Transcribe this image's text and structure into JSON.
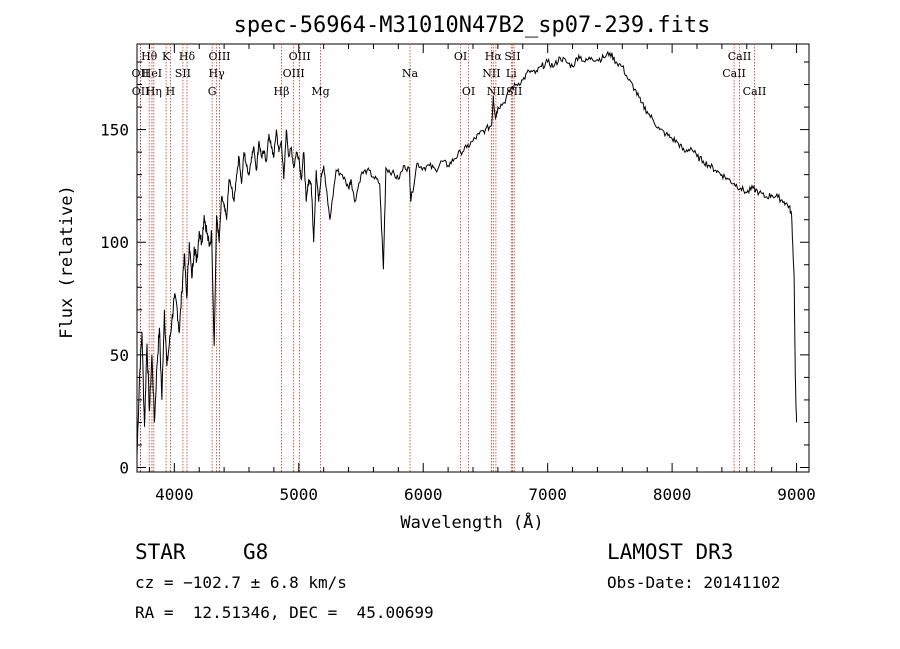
{
  "chart_data": {
    "type": "line",
    "title": "spec-56964-M31010N47B2_sp07-239.fits",
    "xlabel": "Wavelength (Å)",
    "ylabel": "Flux (relative)",
    "xlim": [
      3700,
      9100
    ],
    "ylim": [
      -2,
      188
    ],
    "xticks": [
      4000,
      5000,
      6000,
      7000,
      8000,
      9000
    ],
    "yticks": [
      0,
      50,
      100,
      150
    ],
    "series": [
      {
        "name": "spectrum",
        "x": [
          3700,
          3720,
          3740,
          3760,
          3780,
          3800,
          3820,
          3840,
          3860,
          3880,
          3900,
          3920,
          3940,
          3960,
          3980,
          4000,
          4020,
          4040,
          4060,
          4080,
          4100,
          4120,
          4140,
          4160,
          4180,
          4200,
          4220,
          4240,
          4260,
          4280,
          4300,
          4320,
          4340,
          4360,
          4380,
          4400,
          4420,
          4440,
          4460,
          4480,
          4500,
          4520,
          4540,
          4560,
          4580,
          4600,
          4620,
          4640,
          4660,
          4680,
          4700,
          4720,
          4740,
          4760,
          4780,
          4800,
          4820,
          4840,
          4860,
          4880,
          4900,
          4920,
          4940,
          4960,
          4980,
          5000,
          5020,
          5040,
          5060,
          5080,
          5100,
          5120,
          5140,
          5160,
          5180,
          5200,
          5220,
          5250,
          5300,
          5350,
          5400,
          5420,
          5450,
          5500,
          5550,
          5600,
          5650,
          5680,
          5700,
          5750,
          5800,
          5850,
          5890,
          5900,
          5950,
          6000,
          6050,
          6100,
          6150,
          6200,
          6250,
          6300,
          6350,
          6400,
          6450,
          6500,
          6550,
          6563,
          6580,
          6600,
          6650,
          6700,
          6750,
          6800,
          6850,
          6900,
          6950,
          7000,
          7050,
          7100,
          7150,
          7200,
          7250,
          7300,
          7350,
          7400,
          7450,
          7500,
          7550,
          7600,
          7650,
          7700,
          7750,
          7800,
          7850,
          7900,
          7950,
          8000,
          8050,
          8100,
          8150,
          8200,
          8250,
          8300,
          8350,
          8400,
          8450,
          8500,
          8550,
          8600,
          8650,
          8700,
          8750,
          8800,
          8850,
          8900,
          8940,
          8960,
          8980,
          8990,
          9000
        ],
        "y": [
          5,
          40,
          60,
          18,
          55,
          25,
          50,
          20,
          45,
          62,
          30,
          70,
          45,
          55,
          65,
          75,
          72,
          60,
          78,
          95,
          75,
          100,
          84,
          98,
          92,
          105,
          100,
          112,
          105,
          98,
          104,
          54,
          112,
          100,
          120,
          116,
          110,
          128,
          124,
          118,
          130,
          138,
          126,
          140,
          134,
          130,
          138,
          142,
          132,
          145,
          138,
          140,
          136,
          148,
          142,
          138,
          150,
          140,
          145,
          128,
          150,
          138,
          142,
          133,
          140,
          138,
          128,
          140,
          118,
          128,
          126,
          100,
          132,
          118,
          130,
          134,
          124,
          110,
          132,
          130,
          124,
          128,
          118,
          130,
          132,
          129,
          126,
          88,
          133,
          131,
          128,
          134,
          132,
          118,
          135,
          133,
          134,
          132,
          136,
          134,
          137,
          140,
          142,
          145,
          148,
          150,
          152,
          165,
          155,
          160,
          162,
          168,
          170,
          172,
          176,
          175,
          178,
          180,
          178,
          182,
          180,
          178,
          183,
          180,
          182,
          181,
          182,
          184,
          180,
          178,
          172,
          168,
          162,
          158,
          154,
          150,
          148,
          146,
          144,
          140,
          142,
          138,
          136,
          134,
          132,
          130,
          128,
          126,
          124,
          122,
          124,
          122,
          120,
          121,
          120,
          118,
          116,
          112,
          85,
          40,
          20
        ]
      }
    ],
    "spectral_lines": [
      {
        "label": "Hθ",
        "wavelength": 3798,
        "row": 1
      },
      {
        "label": "OII",
        "wavelength": 3727,
        "row": 2
      },
      {
        "label": "OII",
        "wavelength": 3729,
        "row": 3
      },
      {
        "label": "HeI",
        "wavelength": 3820,
        "row": 2
      },
      {
        "label": "Hη",
        "wavelength": 3835,
        "row": 3
      },
      {
        "label": "K",
        "wavelength": 3934,
        "row": 1
      },
      {
        "label": "H",
        "wavelength": 3969,
        "row": 3
      },
      {
        "label": "SII",
        "wavelength": 4069,
        "row": 2
      },
      {
        "label": "Hδ",
        "wavelength": 4102,
        "row": 1
      },
      {
        "label": "G",
        "wavelength": 4304,
        "row": 3
      },
      {
        "label": "OIII",
        "wavelength": 4363,
        "row": 1
      },
      {
        "label": "Hγ",
        "wavelength": 4340,
        "row": 2
      },
      {
        "label": "Hβ",
        "wavelength": 4861,
        "row": 3
      },
      {
        "label": "OIII",
        "wavelength": 4959,
        "row": 2
      },
      {
        "label": "OIII",
        "wavelength": 5007,
        "row": 1
      },
      {
        "label": "Mg",
        "wavelength": 5175,
        "row": 3
      },
      {
        "label": "Na",
        "wavelength": 5894,
        "row": 2
      },
      {
        "label": "OI",
        "wavelength": 6300,
        "row": 1
      },
      {
        "label": "OI",
        "wavelength": 6364,
        "row": 3
      },
      {
        "label": "Hα",
        "wavelength": 6563,
        "row": 1
      },
      {
        "label": "NII",
        "wavelength": 6548,
        "row": 2
      },
      {
        "label": "NII",
        "wavelength": 6584,
        "row": 3
      },
      {
        "label": "SII",
        "wavelength": 6717,
        "row": 1
      },
      {
        "label": "Li",
        "wavelength": 6708,
        "row": 2
      },
      {
        "label": "SII",
        "wavelength": 6731,
        "row": 3
      },
      {
        "label": "CaII",
        "wavelength": 8498,
        "row": 2
      },
      {
        "label": "CaII",
        "wavelength": 8542,
        "row": 1
      },
      {
        "label": "CaII",
        "wavelength": 8662,
        "row": 3
      }
    ]
  },
  "info": {
    "class": "STAR",
    "subclass": "G8",
    "survey": "LAMOST DR3",
    "velocity": "cz = −102.7 ± 6.8 km/s",
    "obs_date": "Obs-Date: 20141102",
    "coords": "RA =  12.51346, DEC =  45.00699"
  }
}
